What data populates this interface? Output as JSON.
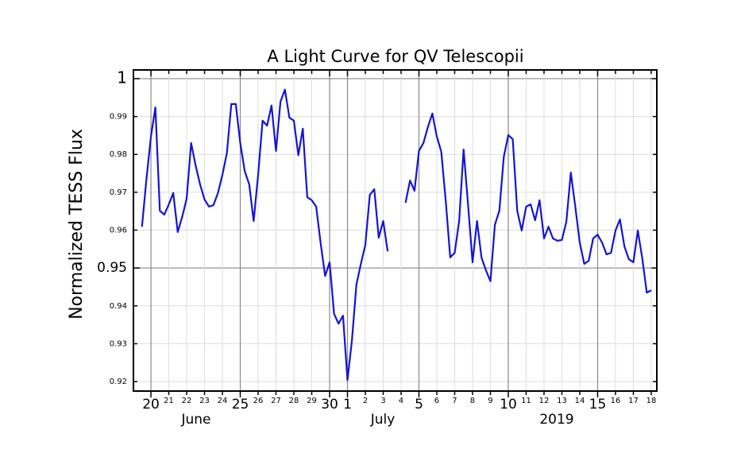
{
  "chart_data": {
    "type": "line",
    "title": "A Light Curve for QV Telescopii",
    "y_label": "Normalized TESS Flux",
    "color": "#1414d6",
    "title_color": "#1a1ad0",
    "grid": true,
    "annotations": [
      "June",
      "July",
      "2019"
    ],
    "xlim": [
      "2019-06-19T00:30",
      "2019-07-18T07:30"
    ],
    "xticks": [
      {
        "value": "2019-06-20T00:00",
        "label": "20"
      },
      {
        "value": "2019-06-21T00:00",
        "label": "21"
      },
      {
        "value": "2019-06-22T00:00",
        "label": "22"
      },
      {
        "value": "2019-06-23T00:00",
        "label": "23"
      },
      {
        "value": "2019-06-24T00:00",
        "label": "24"
      },
      {
        "value": "2019-06-25T00:00",
        "label": "25"
      },
      {
        "value": "2019-06-26T00:00",
        "label": "26"
      },
      {
        "value": "2019-06-27T00:00",
        "label": "27"
      },
      {
        "value": "2019-06-28T00:00",
        "label": "28"
      },
      {
        "value": "2019-06-29T00:00",
        "label": "29"
      },
      {
        "value": "2019-06-30T00:00",
        "label": "30"
      },
      {
        "value": "2019-07-01T00:00",
        "label": "1"
      },
      {
        "value": "2019-07-02T00:00",
        "label": "2"
      },
      {
        "value": "2019-07-03T00:00",
        "label": "3"
      },
      {
        "value": "2019-07-04T00:00",
        "label": "4"
      },
      {
        "value": "2019-07-05T00:00",
        "label": "5"
      },
      {
        "value": "2019-07-06T00:00",
        "label": "6"
      },
      {
        "value": "2019-07-07T00:00",
        "label": "7"
      },
      {
        "value": "2019-07-08T00:00",
        "label": "8"
      },
      {
        "value": "2019-07-09T00:00",
        "label": "9"
      },
      {
        "value": "2019-07-10T00:00",
        "label": "10"
      },
      {
        "value": "2019-07-11T00:00",
        "label": "11"
      },
      {
        "value": "2019-07-12T00:00",
        "label": "12"
      },
      {
        "value": "2019-07-13T00:00",
        "label": "13"
      },
      {
        "value": "2019-07-14T00:00",
        "label": "14"
      },
      {
        "value": "2019-07-15T00:00",
        "label": "15"
      },
      {
        "value": "2019-07-16T00:00",
        "label": "16"
      },
      {
        "value": "2019-07-17T00:00",
        "label": "17"
      },
      {
        "value": "2019-07-18T00:00",
        "label": "18"
      }
    ],
    "x_major_ticks": [
      "2019-06-20T00:00",
      "2019-06-25T00:00",
      "2019-06-30T00:00",
      "2019-07-01T00:00",
      "2019-07-05T00:00",
      "2019-07-10T00:00",
      "2019-07-15T00:00"
    ],
    "ylim": [
      0.9175,
      1.0023
    ],
    "yticks": [
      0.92,
      0.93,
      0.94,
      0.95,
      0.96,
      0.97,
      0.98,
      0.99,
      1
    ],
    "y_major_ticks": [
      0.95,
      1
    ],
    "x": [
      "2019-06-19T12:00",
      "2019-06-19T18:00",
      "2019-06-20T00:00",
      "2019-06-20T06:00",
      "2019-06-20T12:00",
      "2019-06-20T18:00",
      "2019-06-21T00:00",
      "2019-06-21T06:00",
      "2019-06-21T12:00",
      "2019-06-21T18:00",
      "2019-06-22T00:00",
      "2019-06-22T06:00",
      "2019-06-22T12:00",
      "2019-06-22T18:00",
      "2019-06-23T00:00",
      "2019-06-23T06:00",
      "2019-06-23T12:00",
      "2019-06-23T18:00",
      "2019-06-24T00:00",
      "2019-06-24T06:00",
      "2019-06-24T12:00",
      "2019-06-24T18:00",
      "2019-06-25T00:00",
      "2019-06-25T06:00",
      "2019-06-25T12:00",
      "2019-06-25T18:00",
      "2019-06-26T00:00",
      "2019-06-26T06:00",
      "2019-06-26T12:00",
      "2019-06-26T18:00",
      "2019-06-27T00:00",
      "2019-06-27T06:00",
      "2019-06-27T12:00",
      "2019-06-27T18:00",
      "2019-06-28T00:00",
      "2019-06-28T06:00",
      "2019-06-28T12:00",
      "2019-06-28T18:00",
      "2019-06-29T00:00",
      "2019-06-29T06:00",
      "2019-06-29T12:00",
      "2019-06-29T18:00",
      "2019-06-30T00:00",
      "2019-06-30T06:00",
      "2019-06-30T12:00",
      "2019-06-30T18:00",
      "2019-07-01T00:00",
      "2019-07-01T06:00",
      "2019-07-01T12:00",
      "2019-07-01T18:00",
      "2019-07-02T00:00",
      "2019-07-02T06:00",
      "2019-07-02T12:00",
      "2019-07-02T18:00",
      "2019-07-03T00:00",
      "2019-07-03T06:00",
      "2019-07-03T12:00",
      "2019-07-03T18:00",
      "2019-07-04T00:00",
      "2019-07-04T06:00",
      "2019-07-04T12:00",
      "2019-07-04T18:00",
      "2019-07-05T00:00",
      "2019-07-05T06:00",
      "2019-07-05T12:00",
      "2019-07-05T18:00",
      "2019-07-06T00:00",
      "2019-07-06T06:00",
      "2019-07-06T12:00",
      "2019-07-06T18:00",
      "2019-07-07T00:00",
      "2019-07-07T06:00",
      "2019-07-07T12:00",
      "2019-07-07T18:00",
      "2019-07-08T00:00",
      "2019-07-08T06:00",
      "2019-07-08T12:00",
      "2019-07-08T18:00",
      "2019-07-09T00:00",
      "2019-07-09T06:00",
      "2019-07-09T12:00",
      "2019-07-09T18:00",
      "2019-07-10T00:00",
      "2019-07-10T06:00",
      "2019-07-10T12:00",
      "2019-07-10T18:00",
      "2019-07-11T00:00",
      "2019-07-11T06:00",
      "2019-07-11T12:00",
      "2019-07-11T18:00",
      "2019-07-12T00:00",
      "2019-07-12T06:00",
      "2019-07-12T12:00",
      "2019-07-12T18:00",
      "2019-07-13T00:00",
      "2019-07-13T06:00",
      "2019-07-13T12:00",
      "2019-07-13T18:00",
      "2019-07-14T00:00",
      "2019-07-14T06:00",
      "2019-07-14T12:00",
      "2019-07-14T18:00",
      "2019-07-15T00:00",
      "2019-07-15T06:00",
      "2019-07-15T12:00",
      "2019-07-15T18:00",
      "2019-07-16T00:00",
      "2019-07-16T06:00",
      "2019-07-16T12:00",
      "2019-07-16T18:00",
      "2019-07-17T00:00",
      "2019-07-17T06:00",
      "2019-07-17T12:00",
      "2019-07-17T18:00",
      "2019-07-18T00:00"
    ],
    "values": [
      0.9609,
      0.9735,
      0.9847,
      0.9924,
      0.9651,
      0.9641,
      0.9668,
      0.9698,
      0.9595,
      0.9635,
      0.9683,
      0.983,
      0.9771,
      0.9721,
      0.9681,
      0.9662,
      0.9666,
      0.9698,
      0.9746,
      0.9803,
      0.9933,
      0.9933,
      0.983,
      0.9756,
      0.9721,
      0.9624,
      0.9746,
      0.9889,
      0.9876,
      0.9929,
      0.9809,
      0.9939,
      0.9971,
      0.9897,
      0.9889,
      0.9798,
      0.9868,
      0.9687,
      0.9679,
      0.9662,
      0.9565,
      0.9479,
      0.9515,
      0.9379,
      0.9353,
      0.9374,
      0.9204,
      0.9309,
      0.9456,
      0.9511,
      0.9561,
      0.9693,
      0.9708,
      0.958,
      0.9624,
      0.9544,
      null,
      null,
      null,
      0.9672,
      0.9731,
      0.9704,
      0.9809,
      0.983,
      0.9872,
      0.9908,
      0.9847,
      0.9807,
      0.9677,
      0.9528,
      0.954,
      0.9624,
      0.9813,
      0.9666,
      0.9515,
      0.9624,
      0.9528,
      0.9494,
      0.9465,
      0.9614,
      0.9651,
      0.9794,
      0.9851,
      0.984,
      0.9651,
      0.9599,
      0.9662,
      0.9668,
      0.9626,
      0.9679,
      0.9578,
      0.9609,
      0.9578,
      0.9572,
      0.9574,
      0.9622,
      0.9752,
      0.9662,
      0.9567,
      0.9511,
      0.9519,
      0.9578,
      0.9588,
      0.9567,
      0.9536,
      0.954,
      0.9599,
      0.9628,
      0.9557,
      0.9523,
      0.9515,
      0.9599,
      0.9525,
      0.9435,
      0.9441
    ]
  }
}
